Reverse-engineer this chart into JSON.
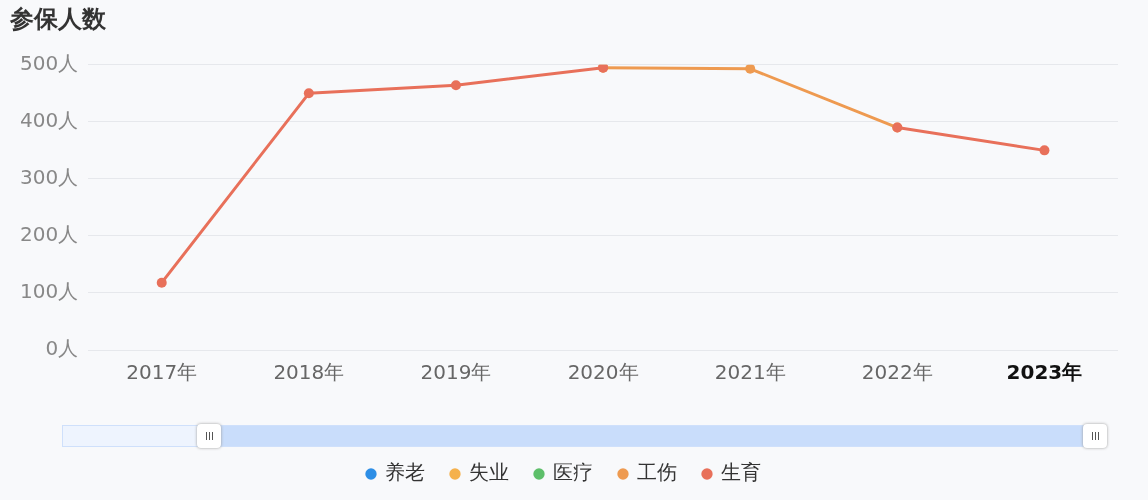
{
  "chart_data": {
    "type": "line",
    "title": "参保人数",
    "categories": [
      "2017年",
      "2018年",
      "2019年",
      "2020年",
      "2021年",
      "2022年",
      "2023年"
    ],
    "series": [
      {
        "name": "养老",
        "color": "#2d8ee6",
        "values": [
          null,
          null,
          null,
          null,
          null,
          null,
          null
        ]
      },
      {
        "name": "失业",
        "color": "#f5b14c",
        "values": [
          null,
          null,
          null,
          null,
          null,
          null,
          null
        ]
      },
      {
        "name": "医疗",
        "color": "#5dbf6a",
        "values": [
          null,
          null,
          null,
          null,
          null,
          null,
          null
        ]
      },
      {
        "name": "工伤",
        "color": "#ee9a50",
        "values": [
          null,
          null,
          null,
          495,
          493,
          390,
          null
        ]
      },
      {
        "name": "生育",
        "color": "#e8705a",
        "values": [
          118,
          450,
          464,
          495,
          null,
          390,
          350
        ]
      }
    ],
    "ylim": [
      0,
      500
    ],
    "yticks": [
      {
        "value": 0,
        "label": "0人"
      },
      {
        "value": 100,
        "label": "100人"
      },
      {
        "value": 200,
        "label": "200人"
      },
      {
        "value": 300,
        "label": "300人"
      },
      {
        "value": 400,
        "label": "400人"
      },
      {
        "value": 500,
        "label": "500人"
      }
    ],
    "grid": "y",
    "legend": "bottom",
    "marker": "circle",
    "line_style": "solid"
  }
}
